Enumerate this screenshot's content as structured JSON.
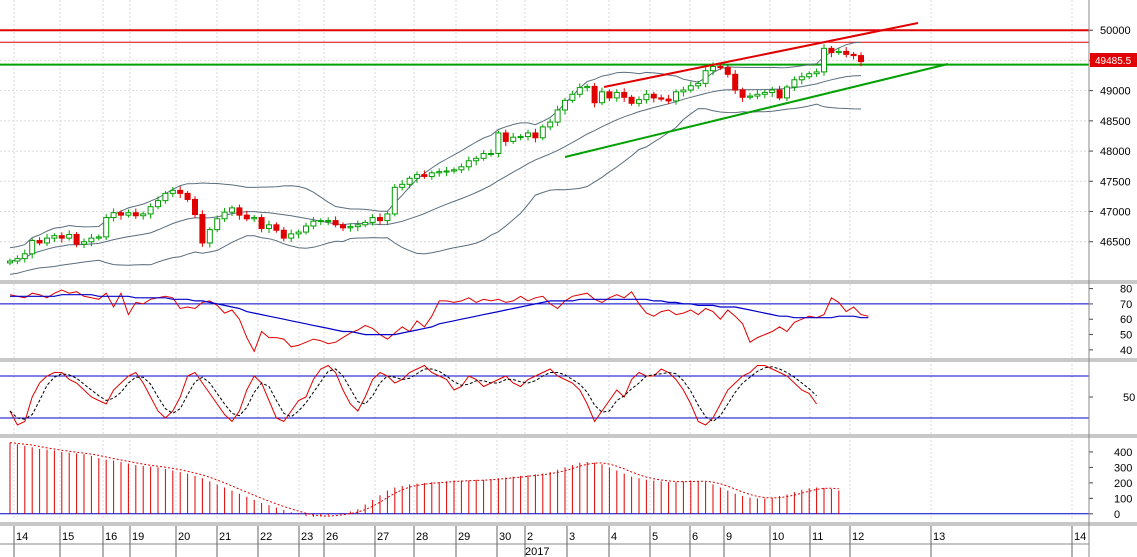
{
  "colors": {
    "up_candle": "#00a000",
    "down_candle": "#e00000",
    "bollinger": "#5a6e7e",
    "trend_red": "#e00000",
    "trend_green": "#00a000",
    "level_red": "#e00000",
    "level_green": "#00a000",
    "rsi_line": "#e00000",
    "rsi_ma": "#0000c8",
    "stoch_k": "#e00000",
    "stoch_d": "#000000",
    "ref_line": "#0000c8",
    "histogram": "#e00000",
    "grid": "#dadada",
    "separator": "#c8c8c8"
  },
  "last_price_label": "49485.5",
  "x_axis": {
    "day_labels": [
      "14",
      "15",
      "16",
      "19",
      "20",
      "21",
      "22",
      "23",
      "26",
      "27",
      "28",
      "29",
      "30",
      "2",
      "3",
      "4",
      "5",
      "6",
      "9",
      "10",
      "11",
      "12",
      "13",
      "14"
    ],
    "year_label": "2017"
  },
  "chart_data": [
    {
      "type": "candlestick",
      "panel": "price",
      "yticks": [
        "50000",
        "49500",
        "49000",
        "48500",
        "48000",
        "47500",
        "47000",
        "46500"
      ],
      "ylim": [
        45900,
        50450
      ],
      "horizontal_levels": [
        50000,
        49800,
        49430
      ],
      "overlays": [
        "Bollinger Bands",
        "channel trend lines"
      ],
      "series_open": [
        46150,
        46180,
        46220,
        46300,
        46520,
        46480,
        46560,
        46600,
        46560,
        46620,
        46460,
        46500,
        46560,
        46580,
        46900,
        46980,
        46940,
        46980,
        46930,
        46960,
        47080,
        47180,
        47300,
        47350,
        47300,
        47200,
        46950,
        46480,
        46700,
        46880,
        46990,
        47060,
        46940,
        46880,
        46900,
        46720,
        46780,
        46690,
        46560,
        46630,
        46660,
        46760,
        46840,
        46850,
        46850,
        46780,
        46730,
        46750,
        46780,
        46820,
        46900,
        46850,
        46960,
        47400,
        47450,
        47550,
        47610,
        47580,
        47640,
        47660,
        47670,
        47690,
        47740,
        47840,
        47880,
        47960,
        47960,
        48300,
        48160,
        48230,
        48240,
        48300,
        48220,
        48400,
        48480,
        48680,
        48840,
        48940,
        49050,
        49070,
        48800,
        48980,
        48880,
        48970,
        48890,
        48790,
        48850,
        48940,
        48880,
        48860,
        48830,
        48980,
        49010,
        49080,
        49120,
        49330,
        49400,
        49380,
        49270,
        49010,
        48890,
        48910,
        48940,
        48970,
        49010,
        48880,
        49060,
        49180,
        49230,
        49280,
        49310,
        49700,
        49630,
        49650,
        49600,
        49580
      ],
      "series_close": [
        46180,
        46220,
        46300,
        46520,
        46480,
        46560,
        46600,
        46560,
        46620,
        46460,
        46500,
        46560,
        46580,
        46900,
        46980,
        46940,
        46980,
        46930,
        46960,
        47080,
        47180,
        47300,
        47350,
        47300,
        47200,
        46950,
        46480,
        46700,
        46880,
        46990,
        47060,
        46940,
        46880,
        46900,
        46720,
        46780,
        46690,
        46560,
        46630,
        46660,
        46760,
        46840,
        46850,
        46850,
        46780,
        46730,
        46750,
        46780,
        46820,
        46900,
        46850,
        46960,
        47400,
        47450,
        47550,
        47610,
        47580,
        47640,
        47660,
        47670,
        47690,
        47740,
        47840,
        47880,
        47960,
        47960,
        48300,
        48160,
        48230,
        48240,
        48300,
        48220,
        48400,
        48480,
        48680,
        48840,
        48940,
        49050,
        49070,
        48800,
        48980,
        48880,
        48970,
        48890,
        48790,
        48850,
        48940,
        48880,
        48860,
        48830,
        48980,
        49010,
        49080,
        49120,
        49330,
        49400,
        49380,
        49270,
        49010,
        48890,
        48910,
        48940,
        48970,
        49010,
        48880,
        49060,
        49180,
        49230,
        49280,
        49310,
        49700,
        49630,
        49650,
        49600,
        49580,
        49480
      ]
    },
    {
      "type": "line",
      "panel": "oscillator-1",
      "yticks": [
        "80",
        "70",
        "60",
        "50",
        "40"
      ],
      "ylim": [
        36,
        83
      ],
      "reference_line": 70,
      "series_line_values": [
        76,
        75,
        74,
        77,
        76,
        74,
        77,
        79,
        77,
        78,
        75,
        74,
        73,
        77,
        68,
        77,
        63,
        71,
        70,
        73,
        74,
        75,
        74,
        67,
        68,
        67,
        71,
        72,
        69,
        64,
        66,
        60,
        48,
        39,
        52,
        48,
        48,
        47,
        42,
        43,
        45,
        47,
        46,
        44,
        45,
        48,
        51,
        53,
        56,
        54,
        50,
        47,
        51,
        55,
        52,
        59,
        55,
        62,
        72,
        72,
        71,
        72,
        74,
        71,
        73,
        72,
        73,
        71,
        72,
        75,
        72,
        74,
        75,
        70,
        67,
        72,
        75,
        76,
        77,
        73,
        71,
        74,
        76,
        74,
        78,
        70,
        64,
        62,
        65,
        66,
        63,
        64,
        66,
        63,
        67,
        65,
        60,
        66,
        62,
        57,
        45,
        48,
        50,
        52,
        55,
        52,
        58,
        60,
        62,
        61,
        63,
        74,
        71,
        65,
        68,
        63,
        62
      ],
      "series_ma_values": [
        75,
        75,
        75,
        75,
        75,
        75,
        75,
        76,
        76,
        76,
        76,
        76,
        75,
        75,
        75,
        75,
        75,
        74,
        74,
        74,
        74,
        74,
        73,
        73,
        73,
        72,
        72,
        71,
        70,
        69,
        68,
        67,
        65,
        64,
        63,
        62,
        61,
        60,
        59,
        58,
        57,
        56,
        55,
        54,
        53,
        52,
        52,
        51,
        50,
        50,
        50,
        50,
        50,
        51,
        52,
        53,
        54,
        55,
        57,
        58,
        59,
        60,
        61,
        62,
        63,
        64,
        65,
        66,
        67,
        68,
        69,
        70,
        71,
        72,
        72,
        72,
        72,
        73,
        73,
        73,
        73,
        73,
        73,
        73,
        73,
        73,
        73,
        72,
        72,
        71,
        71,
        70,
        70,
        69,
        69,
        69,
        68,
        68,
        68,
        67,
        66,
        65,
        64,
        63,
        62,
        62,
        61,
        61,
        61,
        61,
        61,
        61,
        62,
        62,
        62,
        61,
        61
      ]
    },
    {
      "type": "line",
      "panel": "oscillator-2",
      "yticks": [
        "50"
      ],
      "ylim": [
        0,
        100
      ],
      "reference_lines": [
        80,
        20
      ],
      "series_k_values": [
        30,
        10,
        15,
        50,
        70,
        80,
        85,
        85,
        75,
        70,
        60,
        50,
        45,
        40,
        60,
        70,
        80,
        85,
        70,
        50,
        30,
        20,
        30,
        50,
        80,
        85,
        70,
        55,
        40,
        25,
        15,
        30,
        60,
        80,
        70,
        45,
        20,
        15,
        30,
        45,
        50,
        75,
        90,
        95,
        85,
        60,
        40,
        30,
        50,
        75,
        85,
        80,
        70,
        75,
        85,
        90,
        95,
        85,
        80,
        75,
        60,
        65,
        80,
        75,
        65,
        70,
        75,
        80,
        70,
        65,
        75,
        80,
        85,
        90,
        80,
        75,
        70,
        60,
        40,
        15,
        30,
        45,
        60,
        50,
        75,
        85,
        80,
        80,
        90,
        85,
        75,
        60,
        40,
        15,
        10,
        20,
        40,
        60,
        70,
        80,
        85,
        95,
        95,
        90,
        85,
        80,
        70,
        60,
        55,
        40
      ]
    }
  ],
  "chart_data_histogram": {
    "type": "bar",
    "panel": "oscillator-3",
    "yticks": [
      "400",
      "300",
      "200",
      "100",
      "0"
    ],
    "ylim": [
      -40,
      490
    ],
    "values": [
      460,
      450,
      440,
      430,
      420,
      415,
      410,
      400,
      395,
      390,
      385,
      375,
      360,
      350,
      345,
      335,
      325,
      315,
      310,
      305,
      300,
      290,
      280,
      270,
      260,
      245,
      230,
      210,
      190,
      170,
      150,
      130,
      110,
      90,
      70,
      55,
      40,
      25,
      10,
      -5,
      -15,
      -20,
      -15,
      -10,
      -5,
      5,
      15,
      30,
      60,
      90,
      120,
      150,
      170,
      180,
      190,
      195,
      200,
      205,
      205,
      210,
      215,
      215,
      215,
      220,
      220,
      225,
      230,
      235,
      240,
      245,
      250,
      255,
      260,
      270,
      285,
      300,
      315,
      330,
      335,
      330,
      320,
      300,
      280,
      260,
      240,
      230,
      220,
      215,
      210,
      205,
      205,
      210,
      215,
      210,
      205,
      190,
      170,
      150,
      130,
      115,
      105,
      100,
      100,
      105,
      115,
      125,
      140,
      155,
      165,
      170,
      168,
      160,
      150
    ]
  }
}
